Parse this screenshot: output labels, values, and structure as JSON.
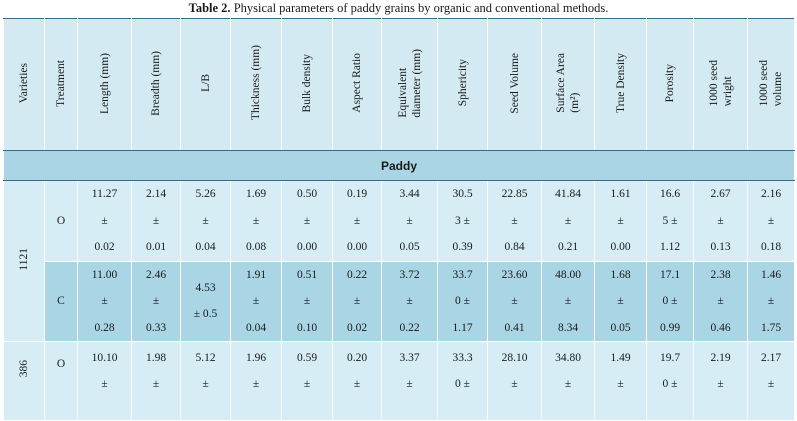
{
  "caption": {
    "label": "Table 2.",
    "text": " Physical parameters of paddy grains by organic and conventional methods."
  },
  "headers": [
    "Varieties",
    "Treatment",
    "Length (mm)",
    "Breadth (mm)",
    "L/B",
    "Thickness (mm)",
    "Bulk density",
    "Aspect Ratio",
    [
      "Equivalent",
      "diameter (mm)"
    ],
    "Sphericity",
    "Seed Volume",
    [
      "Surface Area",
      "(m²)"
    ],
    "True Density",
    "Porosity",
    [
      "1000 seed",
      "wright"
    ],
    [
      "1000 seed",
      "volume"
    ]
  ],
  "section_label": "Paddy",
  "rows": [
    {
      "variety": "1121",
      "treatment": "O",
      "cells": [
        [
          "11.27",
          "±",
          "0.02"
        ],
        [
          "2.14",
          "±",
          "0.01"
        ],
        [
          "5.26",
          "±",
          "0.04"
        ],
        [
          "1.69",
          "±",
          "0.08"
        ],
        [
          "0.50",
          "±",
          "0.00"
        ],
        [
          "0.19",
          "±",
          "0.00"
        ],
        [
          "3.44",
          "±",
          "0.05"
        ],
        [
          "30.5",
          "3 ±",
          "0.39"
        ],
        [
          "22.85",
          "±",
          "0.84"
        ],
        [
          "41.84",
          "±",
          "0.21"
        ],
        [
          "1.61",
          "±",
          "0.00"
        ],
        [
          "16.6",
          "5 ±",
          "1.12"
        ],
        [
          "2.67",
          "±",
          "0.13"
        ],
        [
          "2.16",
          "±",
          "0.18"
        ]
      ]
    },
    {
      "treatment": "C",
      "cells": [
        [
          "11.00",
          "±",
          "0.28"
        ],
        [
          "2.46",
          "±",
          "0.33"
        ],
        [
          "4.53",
          "± 0.5"
        ],
        [
          "1.91",
          "±",
          "0.04"
        ],
        [
          "0.51",
          "±",
          "0.10"
        ],
        [
          "0.22",
          "±",
          "0.02"
        ],
        [
          "3.72",
          "±",
          "0.22"
        ],
        [
          "33.7",
          "0 ±",
          "1.17"
        ],
        [
          "23.60",
          "±",
          "0.41"
        ],
        [
          "48.00",
          "±",
          "8.34"
        ],
        [
          "1.68",
          "±",
          "0.05"
        ],
        [
          "17.1",
          "0 ±",
          "0.99"
        ],
        [
          "2.38",
          "±",
          "0.46"
        ],
        [
          "1.46",
          "±",
          "1.75"
        ]
      ]
    },
    {
      "variety": "386",
      "treatment": "O",
      "cells": [
        [
          "10.10",
          "±"
        ],
        [
          "1.98",
          "±"
        ],
        [
          "5.12",
          "±"
        ],
        [
          "1.96",
          "±"
        ],
        [
          "0.59",
          "±"
        ],
        [
          "0.20",
          "±"
        ],
        [
          "3.37",
          "±"
        ],
        [
          "33.3",
          "0 ±"
        ],
        [
          "28.10",
          "±"
        ],
        [
          "34.80",
          "±"
        ],
        [
          "1.49",
          "±"
        ],
        [
          "19.7",
          "0 ±"
        ],
        [
          "2.19",
          "±"
        ],
        [
          "2.17",
          "±"
        ]
      ]
    }
  ]
}
